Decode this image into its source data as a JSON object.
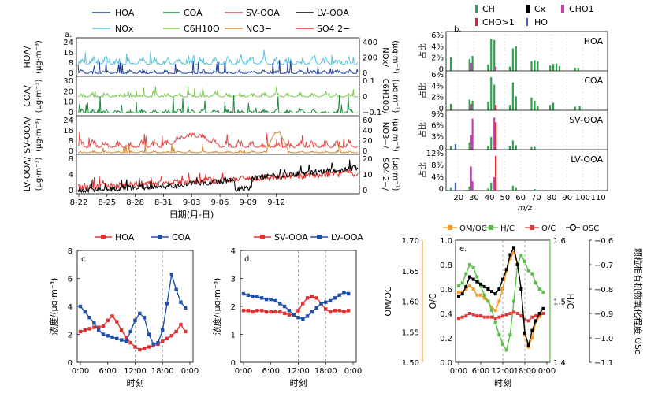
{
  "colors": {
    "hoa": "#1f3f99",
    "nox": "#5ec4d8",
    "coa": "#1c8c3a",
    "c6": "#7ec850",
    "svooa": "#e24a4a",
    "no3": "#d28a3a",
    "lvooa": "#000000",
    "so4": "#e03030",
    "ch": "#2ca24a",
    "cx": "#000000",
    "cho1": "#c040b0",
    "cho_gt1": "#e02030",
    "ho": "#4060c0",
    "om_oc": "#f39c25",
    "h_c": "#5cbf4a",
    "o_c": "#e03a3a",
    "os_c": "#000000"
  },
  "time_series": {
    "panel_label": "a.",
    "legend": [
      "HOA",
      "COA",
      "SV-OOA",
      "LV-OOA",
      "NOx",
      "C6H10O",
      "NO3−",
      "SO4 2−"
    ],
    "x_ticks": [
      "8-22",
      "8-25",
      "8-28",
      "8-31",
      "9-03",
      "9-06",
      "9-09",
      "9-12"
    ],
    "x_label": "日期(月-日)",
    "rows": [
      {
        "left_label": "HOA/",
        "left_unit": "(μg·m⁻³)",
        "left_ticks": [
          "24",
          "16",
          "8",
          "0"
        ],
        "right_label": "NOx/",
        "right_unit": "(μg·m⁻³)",
        "right_ticks": [
          "400",
          "200",
          "0"
        ]
      },
      {
        "left_label": "COA/",
        "left_unit": "(μg·m⁻³)",
        "left_ticks": [
          "30",
          "20",
          "10",
          "0"
        ],
        "right_label": "C6H10O/",
        "right_unit": "(μg·m⁻³)",
        "right_ticks": [
          "0.1",
          "0",
          "−0.1"
        ]
      },
      {
        "left_label": "SV-OOA/",
        "left_unit": "(μg·m⁻³)",
        "left_ticks": [
          "24",
          "16",
          "8",
          "0"
        ],
        "right_label": "NO3−/",
        "right_unit": "(μg·m⁻³)",
        "right_ticks": [
          "60",
          "40",
          "20",
          "0"
        ]
      },
      {
        "left_label": "LV-OOA/",
        "left_unit": "(μg·m⁻³)",
        "left_ticks": [
          "8",
          "4",
          "0"
        ],
        "right_label": "SO4 2−/",
        "right_unit": "(μg·m⁻³)",
        "right_ticks": [
          "20",
          "10",
          "0"
        ]
      }
    ]
  },
  "mass_spectra": {
    "panel_label": "b.",
    "legend": [
      "CH",
      "Cx",
      "CHO1",
      "CHO>1",
      "HO"
    ],
    "x_label": "m/z",
    "x_ticks": [
      "20",
      "30",
      "40",
      "50",
      "60",
      "70",
      "80",
      "90",
      "100",
      "110"
    ],
    "y_label": "占比",
    "factors": [
      {
        "name": "HOA",
        "ticks": [
          "6%",
          "4%",
          "2%",
          "0"
        ]
      },
      {
        "name": "COA",
        "ticks": [
          "6%",
          "4%",
          "2%",
          "0"
        ]
      },
      {
        "name": "SV-OOA",
        "ticks": [
          "9%",
          "6%",
          "3%",
          "0"
        ]
      },
      {
        "name": "LV-OOA",
        "ticks": [
          "12%",
          "8%",
          "4%",
          "0"
        ]
      }
    ]
  },
  "chart_data": [
    {
      "type": "line",
      "panel": "c.",
      "x": [
        0,
        1,
        2,
        3,
        4,
        5,
        6,
        7,
        8,
        9,
        10,
        11,
        12,
        13,
        14,
        15,
        16,
        17,
        18,
        19,
        20,
        21,
        22,
        23
      ],
      "x_ticks": [
        "0:00",
        "6:00",
        "12:00",
        "18:00",
        "0:00"
      ],
      "y_ticks": [
        "8",
        "6",
        "4",
        "2",
        "0"
      ],
      "ylabel": "浓度/(μg·m⁻³)",
      "xlabel": "时刻",
      "ylim": [
        0,
        8
      ],
      "series": [
        {
          "name": "HOA",
          "values": [
            2.2,
            2.3,
            2.4,
            2.5,
            2.5,
            2.6,
            3.0,
            3.3,
            2.9,
            2.3,
            1.8,
            1.4,
            1.1,
            0.9,
            1.0,
            1.1,
            1.2,
            1.3,
            1.5,
            1.7,
            1.9,
            2.2,
            2.7,
            2.2
          ]
        },
        {
          "name": "COA",
          "values": [
            4.0,
            3.6,
            3.2,
            2.8,
            2.3,
            2.0,
            1.9,
            1.8,
            1.7,
            1.6,
            1.5,
            2.2,
            3.0,
            3.5,
            3.2,
            2.0,
            1.3,
            1.4,
            2.3,
            4.2,
            6.3,
            5.2,
            4.3,
            3.9
          ]
        }
      ]
    },
    {
      "type": "line",
      "panel": "d.",
      "x": [
        0,
        1,
        2,
        3,
        4,
        5,
        6,
        7,
        8,
        9,
        10,
        11,
        12,
        13,
        14,
        15,
        16,
        17,
        18,
        19,
        20,
        21,
        22,
        23
      ],
      "x_ticks": [
        "0:00",
        "6:00",
        "12:00",
        "18:00",
        "0:00"
      ],
      "y_ticks": [
        "4",
        "3",
        "2",
        "1",
        "0"
      ],
      "ylabel": "浓度/(μg·m⁻³)",
      "xlabel": "时刻",
      "ylim": [
        0,
        4
      ],
      "series": [
        {
          "name": "SV-OOA",
          "values": [
            1.85,
            1.85,
            1.8,
            1.85,
            1.85,
            1.8,
            1.8,
            1.8,
            1.8,
            1.75,
            1.7,
            1.7,
            1.85,
            2.1,
            2.3,
            2.35,
            2.3,
            2.1,
            1.9,
            1.8,
            1.85,
            1.85,
            1.8,
            1.85
          ]
        },
        {
          "name": "LV-OOA",
          "values": [
            2.45,
            2.4,
            2.35,
            2.35,
            2.3,
            2.25,
            2.25,
            2.2,
            2.1,
            2.0,
            1.85,
            1.7,
            1.6,
            1.55,
            1.65,
            1.8,
            1.95,
            2.1,
            2.15,
            2.2,
            2.3,
            2.4,
            2.5,
            2.45
          ]
        }
      ]
    },
    {
      "type": "line",
      "panel": "e.",
      "x": [
        0,
        1,
        2,
        3,
        4,
        5,
        6,
        7,
        8,
        9,
        10,
        11,
        12,
        13,
        14,
        15,
        16,
        17,
        18,
        19,
        20,
        21,
        22,
        23
      ],
      "x_ticks": [
        "0:00",
        "6:00",
        "12:00",
        "18:00",
        "0:00"
      ],
      "xlabel": "时刻",
      "axes": {
        "om_oc": {
          "label": "OM/OC",
          "ticks": [
            "1.70",
            "1.65",
            "1.60",
            "1.55",
            "1.50"
          ],
          "ylim": [
            1.5,
            1.7
          ]
        },
        "o_c": {
          "label": "O/C",
          "ticks": [
            "1.0",
            "0.8",
            "0.6",
            "0.4",
            "0.2",
            "0.0"
          ],
          "ylim": [
            0,
            1.0
          ]
        },
        "h_c": {
          "label": "H/C",
          "ticks": [
            "1.6",
            "1.5",
            "1.4"
          ],
          "ylim": [
            1.4,
            1.6
          ]
        },
        "os_c": {
          "label": "颗粒相有机物氧化程度 OSc",
          "ticks": [
            "−0.6",
            "−0.7",
            "−0.8",
            "−0.9",
            "−1.0",
            "−1.1"
          ],
          "ylim": [
            -1.1,
            -0.6
          ]
        }
      },
      "series": [
        {
          "name": "OM/OC",
          "axis": "om_oc",
          "values": [
            1.615,
            1.615,
            1.62,
            1.625,
            1.62,
            1.61,
            1.61,
            1.605,
            1.6,
            1.59,
            1.585,
            1.6,
            1.62,
            1.65,
            1.67,
            1.68,
            1.66,
            1.62,
            1.545,
            1.525,
            1.54,
            1.565,
            1.575,
            1.58
          ]
        },
        {
          "name": "H/C",
          "axis": "h_c",
          "values": [
            1.525,
            1.53,
            1.545,
            1.56,
            1.555,
            1.54,
            1.525,
            1.51,
            1.5,
            1.485,
            1.465,
            1.445,
            1.43,
            1.42,
            1.445,
            1.5,
            1.56,
            1.575,
            1.565,
            1.55,
            1.545,
            1.53,
            1.52,
            1.515
          ]
        },
        {
          "name": "O/C",
          "axis": "o_c",
          "values": [
            0.36,
            0.37,
            0.38,
            0.4,
            0.39,
            0.38,
            0.38,
            0.37,
            0.37,
            0.37,
            0.36,
            0.37,
            0.38,
            0.39,
            0.4,
            0.41,
            0.4,
            0.38,
            0.35,
            0.34,
            0.37,
            0.38,
            0.39,
            0.4
          ]
        },
        {
          "name": "OSC",
          "axis": "os_c",
          "values": [
            -0.83,
            -0.82,
            -0.79,
            -0.75,
            -0.76,
            -0.77,
            -0.78,
            -0.79,
            -0.8,
            -0.81,
            -0.82,
            -0.8,
            -0.76,
            -0.72,
            -0.66,
            -0.63,
            -0.7,
            -0.8,
            -0.98,
            -1.03,
            -0.97,
            -0.93,
            -0.9,
            -0.88
          ]
        }
      ]
    }
  ]
}
